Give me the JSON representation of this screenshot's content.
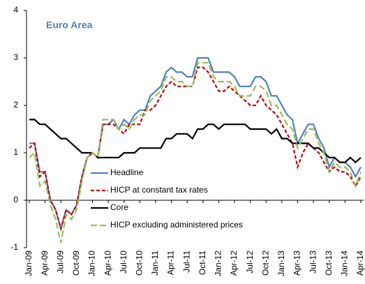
{
  "chart_data": {
    "type": "line",
    "annotation": "Euro Area",
    "categories": [
      "Jan-09",
      null,
      null,
      "Apr-09",
      null,
      null,
      "Jul-09",
      null,
      null,
      "Oct-09",
      null,
      null,
      "Jan-10",
      null,
      null,
      "Apr-10",
      null,
      null,
      "Jul-10",
      null,
      null,
      "Oct-10",
      null,
      null,
      "Jan-11",
      null,
      null,
      "Apr-11",
      null,
      null,
      "Jul-11",
      null,
      null,
      "Oct-11",
      null,
      null,
      "Jan-12",
      null,
      null,
      "Apr-12",
      null,
      null,
      "Jul-12",
      null,
      null,
      "Oct-12",
      null,
      null,
      "Jan-13",
      null,
      null,
      "Apr-13",
      null,
      null,
      "Jul-13",
      null,
      null,
      "Oct-13",
      null,
      null,
      "Jan-14",
      null,
      null,
      "Apr-14"
    ],
    "series": [
      {
        "name": "Headline",
        "color": "#4f81bd",
        "dash": "none",
        "values": [
          1.2,
          1.2,
          0.6,
          0.6,
          0.0,
          -0.2,
          -0.6,
          -0.2,
          -0.3,
          -0.1,
          0.5,
          0.9,
          1.0,
          0.9,
          1.6,
          1.6,
          1.7,
          1.5,
          1.7,
          1.6,
          1.8,
          1.9,
          1.9,
          2.2,
          2.3,
          2.4,
          2.7,
          2.8,
          2.7,
          2.7,
          2.6,
          2.6,
          3.0,
          3.0,
          3.0,
          2.7,
          2.7,
          2.7,
          2.7,
          2.6,
          2.4,
          2.4,
          2.4,
          2.6,
          2.6,
          2.5,
          2.2,
          2.2,
          2.0,
          1.8,
          1.7,
          1.2,
          1.4,
          1.6,
          1.6,
          1.3,
          1.1,
          0.7,
          0.9,
          0.8,
          0.8,
          0.7,
          0.5,
          0.7
        ]
      },
      {
        "name": "HICP at constant tax rates",
        "color": "#c00000",
        "dash": "5,3",
        "values": [
          1.1,
          1.2,
          0.5,
          0.6,
          0.0,
          -0.2,
          -0.6,
          -0.2,
          -0.3,
          -0.1,
          0.5,
          0.9,
          1.0,
          0.9,
          1.6,
          1.6,
          1.6,
          1.5,
          1.4,
          1.6,
          1.6,
          1.6,
          1.9,
          1.9,
          2.0,
          2.2,
          2.4,
          2.5,
          2.4,
          2.4,
          2.4,
          2.4,
          2.8,
          2.8,
          2.7,
          2.5,
          2.3,
          2.3,
          2.4,
          2.3,
          2.2,
          2.1,
          2.0,
          2.0,
          2.2,
          2.0,
          1.9,
          1.8,
          1.6,
          1.4,
          1.2,
          0.7,
          1.0,
          1.2,
          1.1,
          1.0,
          0.8,
          0.6,
          0.7,
          0.6,
          0.6,
          0.5,
          0.3,
          0.5
        ]
      },
      {
        "name": "Core",
        "color": "#000000",
        "dash": "none",
        "values": [
          1.7,
          1.7,
          1.6,
          1.6,
          1.5,
          1.4,
          1.3,
          1.3,
          1.2,
          1.1,
          1.0,
          1.0,
          1.0,
          0.9,
          0.9,
          0.9,
          0.9,
          0.9,
          1.0,
          1.0,
          1.0,
          1.1,
          1.1,
          1.1,
          1.1,
          1.1,
          1.3,
          1.3,
          1.4,
          1.4,
          1.4,
          1.3,
          1.5,
          1.5,
          1.6,
          1.6,
          1.5,
          1.6,
          1.6,
          1.6,
          1.6,
          1.6,
          1.5,
          1.5,
          1.5,
          1.5,
          1.4,
          1.5,
          1.3,
          1.3,
          1.2,
          1.2,
          1.2,
          1.2,
          1.1,
          1.1,
          1.0,
          0.9,
          0.9,
          0.8,
          0.8,
          0.9,
          0.8,
          0.9
        ]
      },
      {
        "name": "HICP excluding administered prices",
        "color": "#9bbb59",
        "dash": "9,4",
        "values": [
          0.9,
          1.0,
          0.3,
          0.4,
          -0.1,
          -0.4,
          -0.9,
          -0.3,
          -0.4,
          -0.2,
          0.4,
          0.9,
          1.0,
          0.9,
          1.7,
          1.7,
          1.7,
          1.5,
          1.6,
          1.5,
          1.7,
          1.8,
          1.8,
          2.1,
          2.2,
          2.3,
          2.6,
          2.6,
          2.5,
          2.5,
          2.4,
          2.4,
          2.9,
          2.9,
          2.9,
          2.6,
          2.5,
          2.5,
          2.5,
          2.4,
          2.2,
          2.2,
          2.2,
          2.4,
          2.4,
          2.3,
          2.0,
          2.0,
          1.8,
          1.6,
          1.5,
          1.1,
          1.3,
          1.5,
          1.5,
          1.2,
          1.0,
          0.6,
          0.8,
          0.7,
          0.7,
          0.6,
          0.3,
          0.6
        ]
      }
    ],
    "ylim": [
      -1,
      4
    ],
    "yticks": [
      -1,
      0,
      1,
      2,
      3,
      4
    ]
  }
}
